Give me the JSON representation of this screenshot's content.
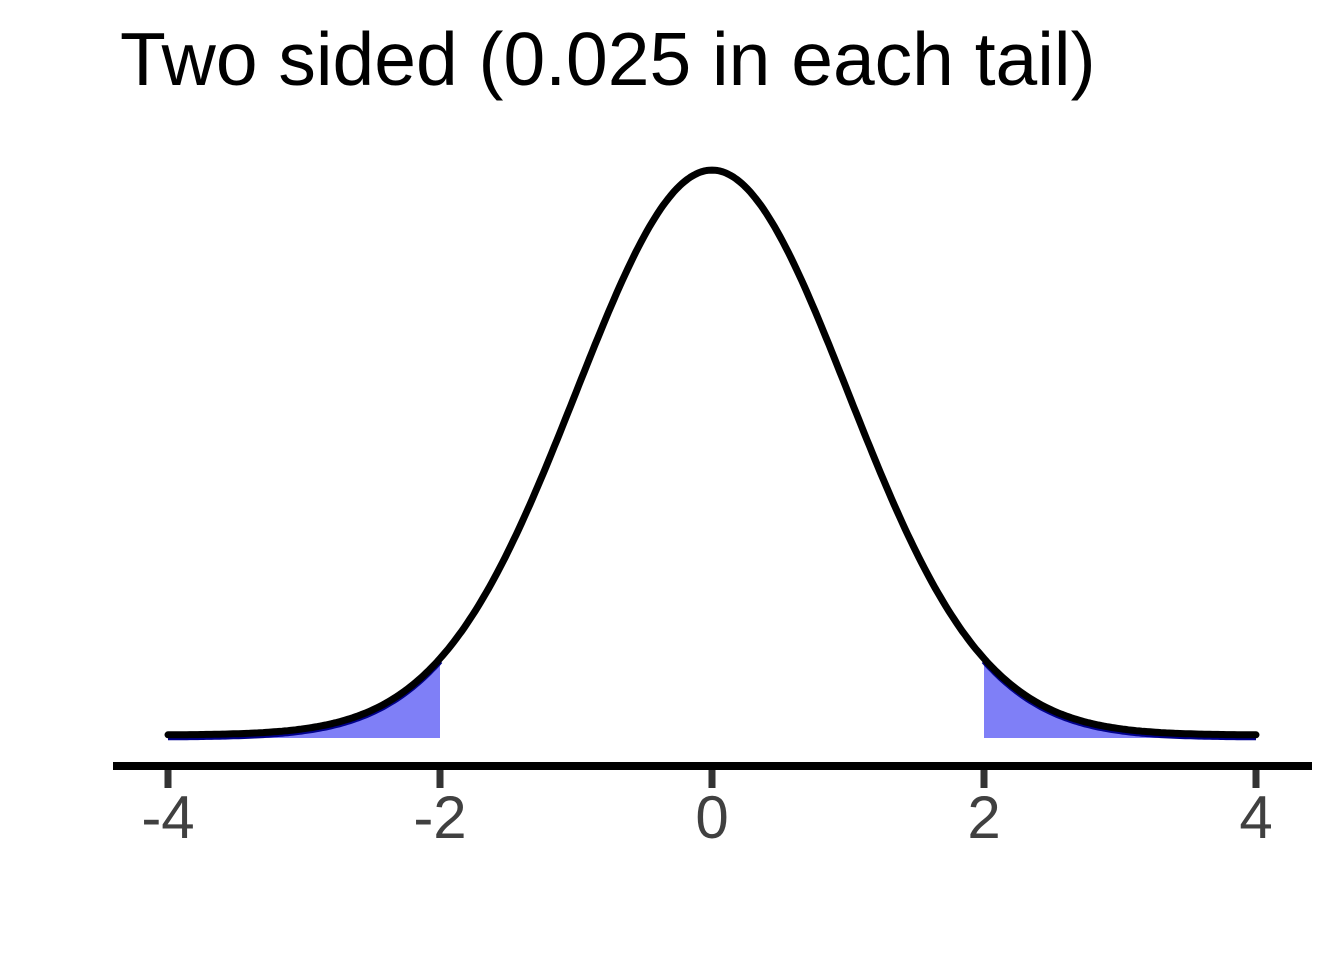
{
  "chart_data": {
    "type": "area",
    "title": "Two sided (0.025 in each tail)",
    "distribution": "normal",
    "mean": 0,
    "sd": 1,
    "x_range": [
      -4,
      4
    ],
    "y_range": [
      0,
      0.4
    ],
    "x_tick_labels": [
      "-4",
      "-2",
      "0",
      "2",
      "4"
    ],
    "x_tick_values": [
      -4,
      -2,
      0,
      2,
      4
    ],
    "shaded_regions": [
      {
        "from": -4,
        "to": -2,
        "tail_area": 0.025,
        "side": "left"
      },
      {
        "from": 2,
        "to": 4,
        "tail_area": 0.025,
        "side": "right"
      }
    ],
    "grid": false,
    "legend": false,
    "ylabel": "",
    "xlabel": "",
    "colors": {
      "curve": "#000000",
      "shade_fill": "#7F7FF7",
      "shade_edge": "#00008B",
      "axis_line": "#000000",
      "tick_mark": "#333333",
      "tick_label": "#404040",
      "title": "#000000",
      "background": "#FFFFFF"
    }
  }
}
